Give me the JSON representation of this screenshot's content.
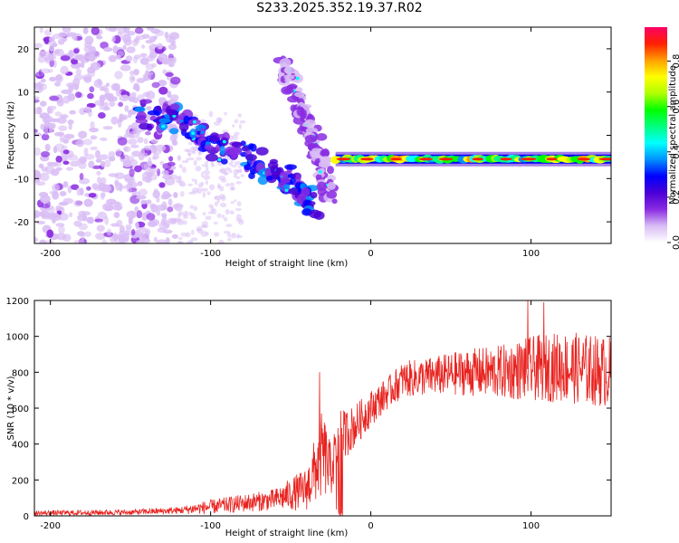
{
  "title": "S233.2025.352.19.37.R02",
  "colors": {
    "snr_line": "#e8231f",
    "colorbar": [
      "#ffffff",
      "#d9bdf5",
      "#8a2be2",
      "#4b00d6",
      "#0000ff",
      "#0090ff",
      "#00ffff",
      "#00ff80",
      "#00ff00",
      "#b0ff00",
      "#ffff00",
      "#ffa000",
      "#ff2000",
      "#ff0066"
    ]
  },
  "chart_data": [
    {
      "type": "heatmap",
      "name": "spectrogram",
      "xlabel": "Height of straight line (km)",
      "ylabel": "Frequency (Hz)",
      "xlim": [
        -210,
        150
      ],
      "ylim": [
        -25,
        25
      ],
      "xticks": [
        -200,
        -100,
        0,
        100
      ],
      "xticklabels": [
        "-200",
        "-100",
        "0",
        "100"
      ],
      "yticks": [
        -20,
        -10,
        0,
        10,
        20
      ],
      "yticklabels": [
        "-20",
        "-10",
        "0",
        "10",
        "20"
      ],
      "features": [
        {
          "name": "noise-band",
          "x_range": [
            -210,
            -120
          ],
          "freq_range": [
            -25,
            25
          ],
          "amplitude": 0.15
        },
        {
          "name": "descending-trace",
          "x": [
            -145,
            -120,
            -100,
            -80,
            -60,
            -45,
            -35
          ],
          "freq": [
            5,
            4,
            -2,
            -5,
            -8,
            -12,
            -17
          ],
          "amplitude": 0.3
        },
        {
          "name": "rising-trace",
          "x": [
            -55,
            -48,
            -42,
            -35,
            -30,
            -25
          ],
          "freq": [
            15,
            12,
            5,
            -2,
            -8,
            -13
          ],
          "amplitude": 0.15
        },
        {
          "name": "steady-tone",
          "x_range": [
            -22,
            150
          ],
          "freq": -5.5,
          "amplitude": 0.85
        }
      ]
    },
    {
      "type": "colorbar",
      "name": "amplitude-scale",
      "label": "Normalized spectral amplitude",
      "range": [
        0,
        0.95
      ],
      "ticks": [
        0.0,
        0.2,
        0.4,
        0.6,
        0.8
      ],
      "ticklabels": [
        "0.0",
        "0.2",
        "0.4",
        "0.6",
        "0.8"
      ]
    },
    {
      "type": "line",
      "name": "snr",
      "xlabel": "Height of straight line (km)",
      "ylabel": "SNR (10 * v/v)",
      "xlim": [
        -210,
        150
      ],
      "ylim": [
        0,
        1200
      ],
      "xticks": [
        -200,
        -100,
        0,
        100
      ],
      "xticklabels": [
        "-200",
        "-100",
        "0",
        "100"
      ],
      "yticks": [
        0,
        200,
        400,
        600,
        800,
        1000,
        1200
      ],
      "yticklabels": [
        "0",
        "200",
        "400",
        "600",
        "800",
        "1000",
        "1200"
      ],
      "envelope": {
        "x": [
          -210,
          -150,
          -120,
          -100,
          -60,
          -40,
          -30,
          -25,
          -20,
          -10,
          0,
          10,
          20,
          40,
          60,
          80,
          100,
          120,
          150
        ],
        "mean": [
          15,
          20,
          30,
          50,
          90,
          150,
          350,
          250,
          430,
          500,
          600,
          680,
          760,
          780,
          800,
          800,
          820,
          830,
          800
        ],
        "spread": [
          15,
          15,
          20,
          40,
          60,
          120,
          250,
          150,
          150,
          120,
          100,
          90,
          100,
          110,
          130,
          150,
          180,
          200,
          200
        ]
      },
      "peaks": [
        {
          "x": -32,
          "y": 800
        },
        {
          "x": 98,
          "y": 1200
        },
        {
          "x": 108,
          "y": 1190
        }
      ]
    }
  ]
}
